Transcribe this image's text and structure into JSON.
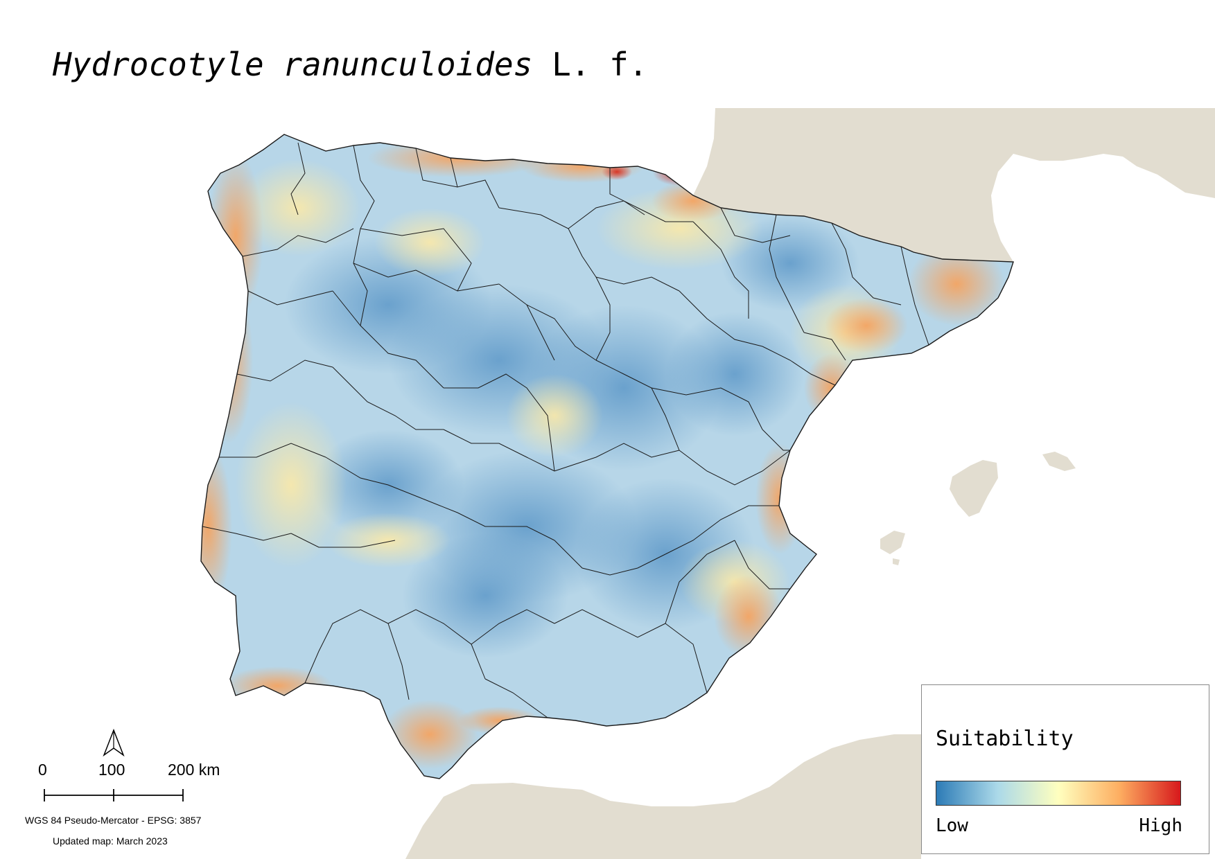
{
  "title": {
    "species": "Hydrocotyle ranunculoides",
    "author": "L. f."
  },
  "legend": {
    "title": "Suitability",
    "low_label": "Low",
    "high_label": "High",
    "ramp_colors": [
      "#2c7bb6",
      "#abd9e9",
      "#ffffbf",
      "#fdae61",
      "#d7191c"
    ]
  },
  "scale_bar": {
    "labels": [
      "0",
      "100",
      "200 km"
    ]
  },
  "north_arrow": {
    "icon": "north-arrow-icon"
  },
  "projection": "WGS 84 Pseudo-Mercator  - EPSG: 3857",
  "updated": "Updated map: March 2023",
  "colors": {
    "land_background": "#e2ddd0",
    "sea": "#ffffff",
    "boundary": "#1a1a1a"
  }
}
